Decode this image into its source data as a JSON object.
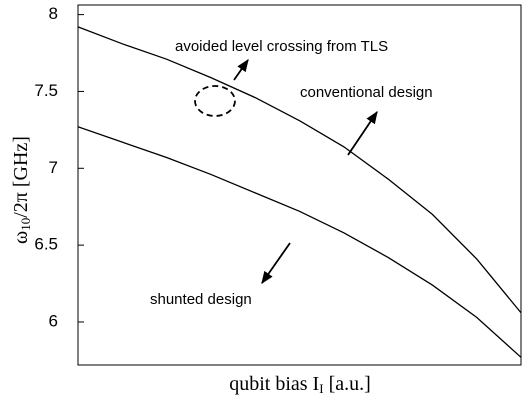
{
  "chart_data": {
    "type": "line",
    "ylabel": {
      "main": "ω",
      "sub": "10",
      "rest": "/2π [GHz]"
    },
    "xlabel": {
      "main": "qubit bias I",
      "sub": "I",
      "rest": " [a.u.]"
    },
    "annotations": [
      "avoided level crossing from TLS",
      "conventional design",
      "shunted design"
    ],
    "x": [
      0,
      0.1,
      0.2,
      0.3,
      0.4,
      0.5,
      0.6,
      0.7,
      0.8,
      0.9,
      1.0
    ],
    "series": [
      {
        "color": "#000000",
        "values": [
          7.92,
          7.81,
          7.71,
          7.59,
          7.46,
          7.31,
          7.14,
          6.93,
          6.7,
          6.41,
          6.06
        ]
      },
      {
        "color": "#000000",
        "values": [
          7.27,
          7.17,
          7.07,
          6.96,
          6.84,
          6.72,
          6.58,
          6.42,
          6.24,
          6.03,
          5.77
        ]
      }
    ],
    "xlim": [
      0,
      1
    ],
    "ylim": [
      5.72,
      8.03
    ],
    "yticks": [
      6,
      6.5,
      7,
      7.5,
      8
    ],
    "grid": false
  }
}
